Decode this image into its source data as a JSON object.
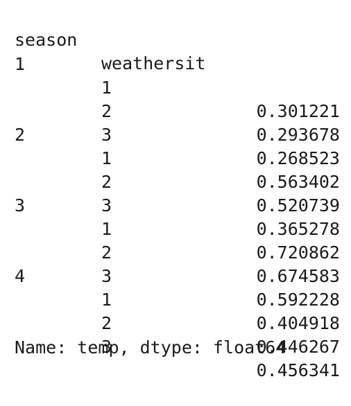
{
  "header": {
    "season_label": "season",
    "weathersit_label": "weathersit"
  },
  "rows": [
    {
      "season": "1",
      "weathersit": "1",
      "value": "0.301221"
    },
    {
      "season": "",
      "weathersit": "2",
      "value": "0.293678"
    },
    {
      "season": "",
      "weathersit": "3",
      "value": "0.268523"
    },
    {
      "season": "2",
      "weathersit": "1",
      "value": "0.563402"
    },
    {
      "season": "",
      "weathersit": "2",
      "value": "0.520739"
    },
    {
      "season": "",
      "weathersit": "3",
      "value": "0.365278"
    },
    {
      "season": "3",
      "weathersit": "1",
      "value": "0.720862"
    },
    {
      "season": "",
      "weathersit": "2",
      "value": "0.674583"
    },
    {
      "season": "",
      "weathersit": "3",
      "value": "0.592228"
    },
    {
      "season": "4",
      "weathersit": "1",
      "value": "0.404918"
    },
    {
      "season": "",
      "weathersit": "2",
      "value": "0.446267"
    },
    {
      "season": "",
      "weathersit": "3",
      "value": "0.456341"
    }
  ],
  "footer": {
    "text": "Name: temp, dtype: float64"
  }
}
